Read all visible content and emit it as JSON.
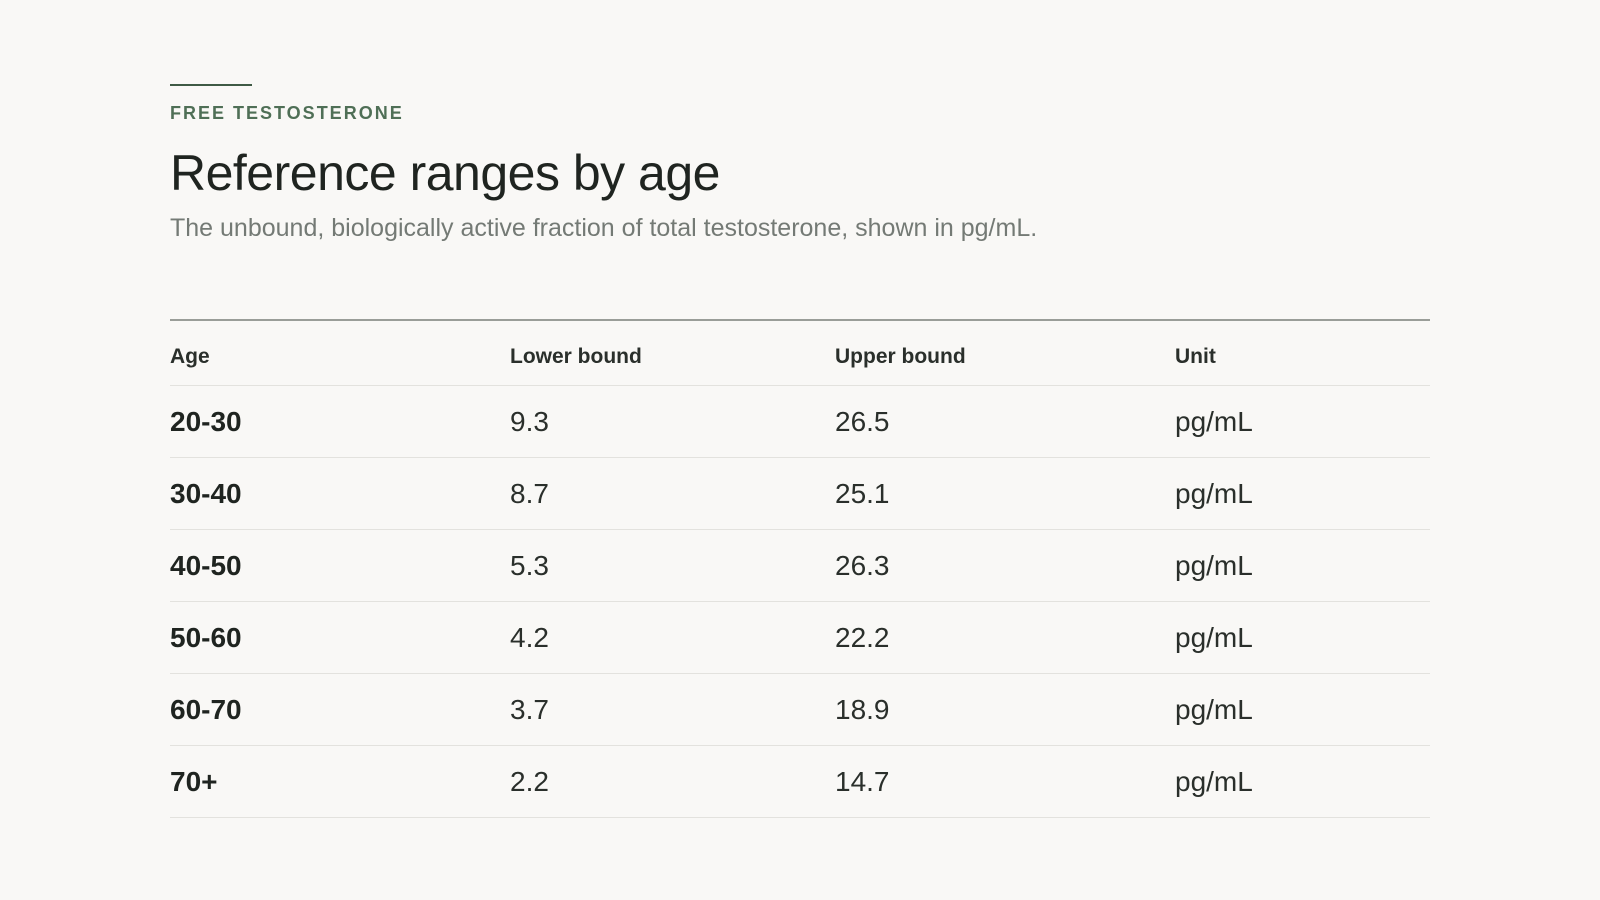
{
  "eyebrow": "FREE TESTOSTERONE",
  "title": "Reference ranges by age",
  "subtitle": "The unbound, biologically active fraction of total testosterone, shown in pg/mL.",
  "table": {
    "headers": [
      "Age",
      "Lower bound",
      "Upper bound",
      "Unit"
    ],
    "rows": [
      [
        "20-30",
        "9.3",
        "26.5",
        "pg/mL"
      ],
      [
        "30-40",
        "8.7",
        "25.1",
        "pg/mL"
      ],
      [
        "40-50",
        "5.3",
        "26.3",
        "pg/mL"
      ],
      [
        "50-60",
        "4.2",
        "22.2",
        "pg/mL"
      ],
      [
        "60-70",
        "3.7",
        "18.9",
        "pg/mL"
      ],
      [
        "70+",
        "2.2",
        "14.7",
        "pg/mL"
      ]
    ]
  },
  "colors": {
    "background": "#f9f8f6",
    "accent": "#4f6f56",
    "text": "#1f2420",
    "muted": "#747a75"
  }
}
